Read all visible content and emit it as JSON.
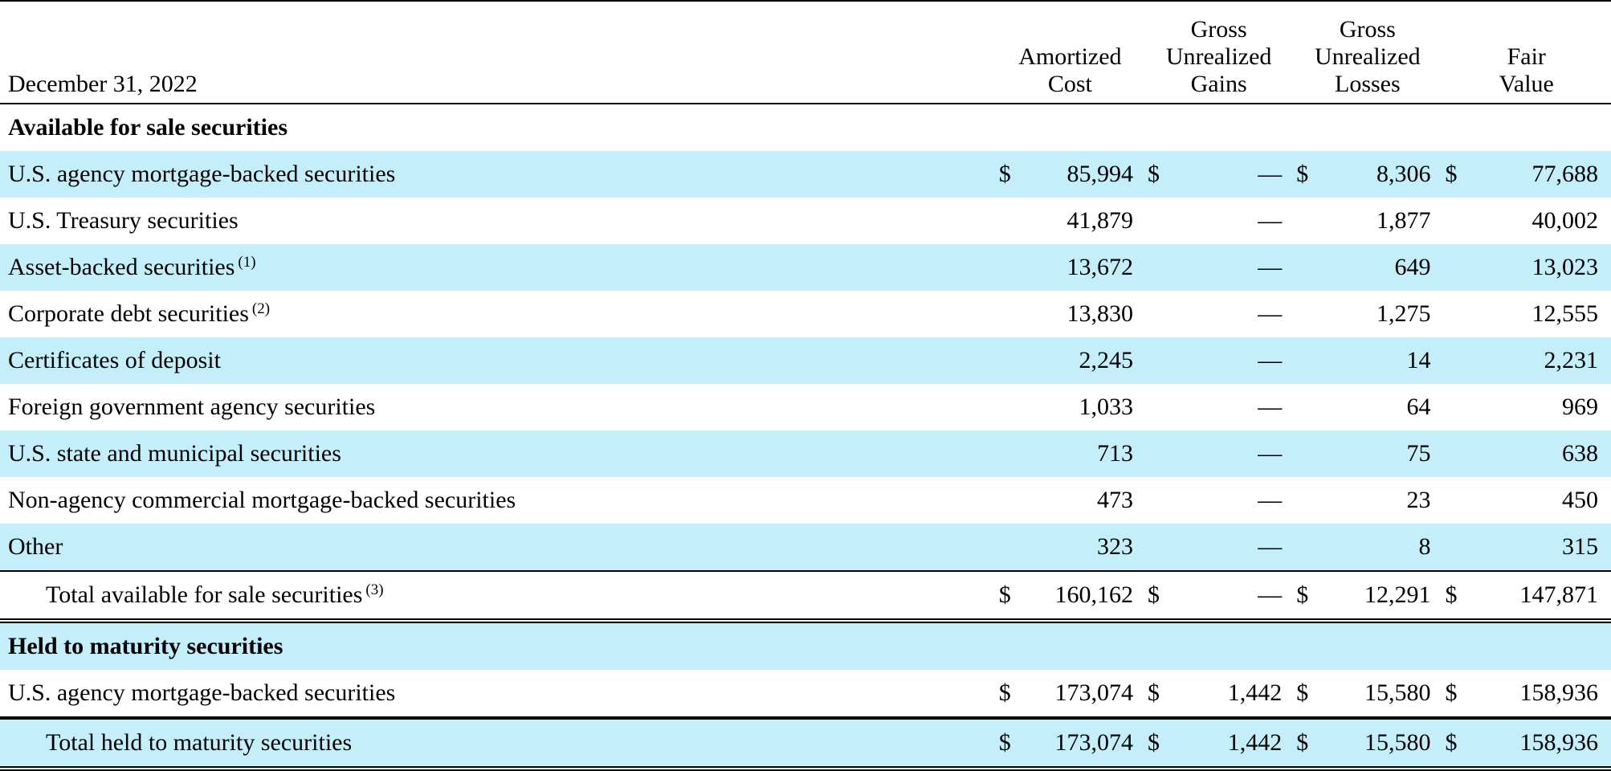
{
  "header": {
    "date_label": "December 31, 2022",
    "columns": [
      {
        "line1": "",
        "line2": "Amortized",
        "line3": "Cost"
      },
      {
        "line1": "Gross",
        "line2": "Unrealized",
        "line3": "Gains"
      },
      {
        "line1": "Gross",
        "line2": "Unrealized",
        "line3": "Losses"
      },
      {
        "line1": "",
        "line2": "Fair",
        "line3": "Value"
      }
    ]
  },
  "currency_symbol": "$",
  "afs": {
    "title": "Available for sale securities",
    "rows": [
      {
        "label": "U.S. agency mortgage-backed securities",
        "footnote": "",
        "amortized_cost": "85,994",
        "gross_unrealized_gains": "—",
        "gross_unrealized_losses": "8,306",
        "fair_value": "77,688"
      },
      {
        "label": "U.S. Treasury securities",
        "footnote": "",
        "amortized_cost": "41,879",
        "gross_unrealized_gains": "—",
        "gross_unrealized_losses": "1,877",
        "fair_value": "40,002"
      },
      {
        "label": "Asset-backed securities",
        "footnote": "(1)",
        "amortized_cost": "13,672",
        "gross_unrealized_gains": "—",
        "gross_unrealized_losses": "649",
        "fair_value": "13,023"
      },
      {
        "label": "Corporate debt securities",
        "footnote": "(2)",
        "amortized_cost": "13,830",
        "gross_unrealized_gains": "—",
        "gross_unrealized_losses": "1,275",
        "fair_value": "12,555"
      },
      {
        "label": "Certificates of deposit",
        "footnote": "",
        "amortized_cost": "2,245",
        "gross_unrealized_gains": "—",
        "gross_unrealized_losses": "14",
        "fair_value": "2,231"
      },
      {
        "label": "Foreign government agency securities",
        "footnote": "",
        "amortized_cost": "1,033",
        "gross_unrealized_gains": "—",
        "gross_unrealized_losses": "64",
        "fair_value": "969"
      },
      {
        "label": "U.S. state and municipal securities",
        "footnote": "",
        "amortized_cost": "713",
        "gross_unrealized_gains": "—",
        "gross_unrealized_losses": "75",
        "fair_value": "638"
      },
      {
        "label": "Non-agency commercial mortgage-backed securities",
        "footnote": "",
        "amortized_cost": "473",
        "gross_unrealized_gains": "—",
        "gross_unrealized_losses": "23",
        "fair_value": "450"
      },
      {
        "label": "Other",
        "footnote": "",
        "amortized_cost": "323",
        "gross_unrealized_gains": "—",
        "gross_unrealized_losses": "8",
        "fair_value": "315"
      }
    ],
    "total": {
      "label": "Total available for sale securities",
      "footnote": "(3)",
      "amortized_cost": "160,162",
      "gross_unrealized_gains": "—",
      "gross_unrealized_losses": "12,291",
      "fair_value": "147,871"
    }
  },
  "htm": {
    "title": "Held to maturity securities",
    "rows": [
      {
        "label": "U.S. agency mortgage-backed securities",
        "amortized_cost": "173,074",
        "gross_unrealized_gains": "1,442",
        "gross_unrealized_losses": "15,580",
        "fair_value": "158,936"
      }
    ],
    "total": {
      "label": "Total held to maturity securities",
      "amortized_cost": "173,074",
      "gross_unrealized_gains": "1,442",
      "gross_unrealized_losses": "15,580",
      "fair_value": "158,936"
    }
  },
  "colors": {
    "row_shade": "#c4eefa",
    "text": "#000000",
    "rule": "#000000"
  }
}
